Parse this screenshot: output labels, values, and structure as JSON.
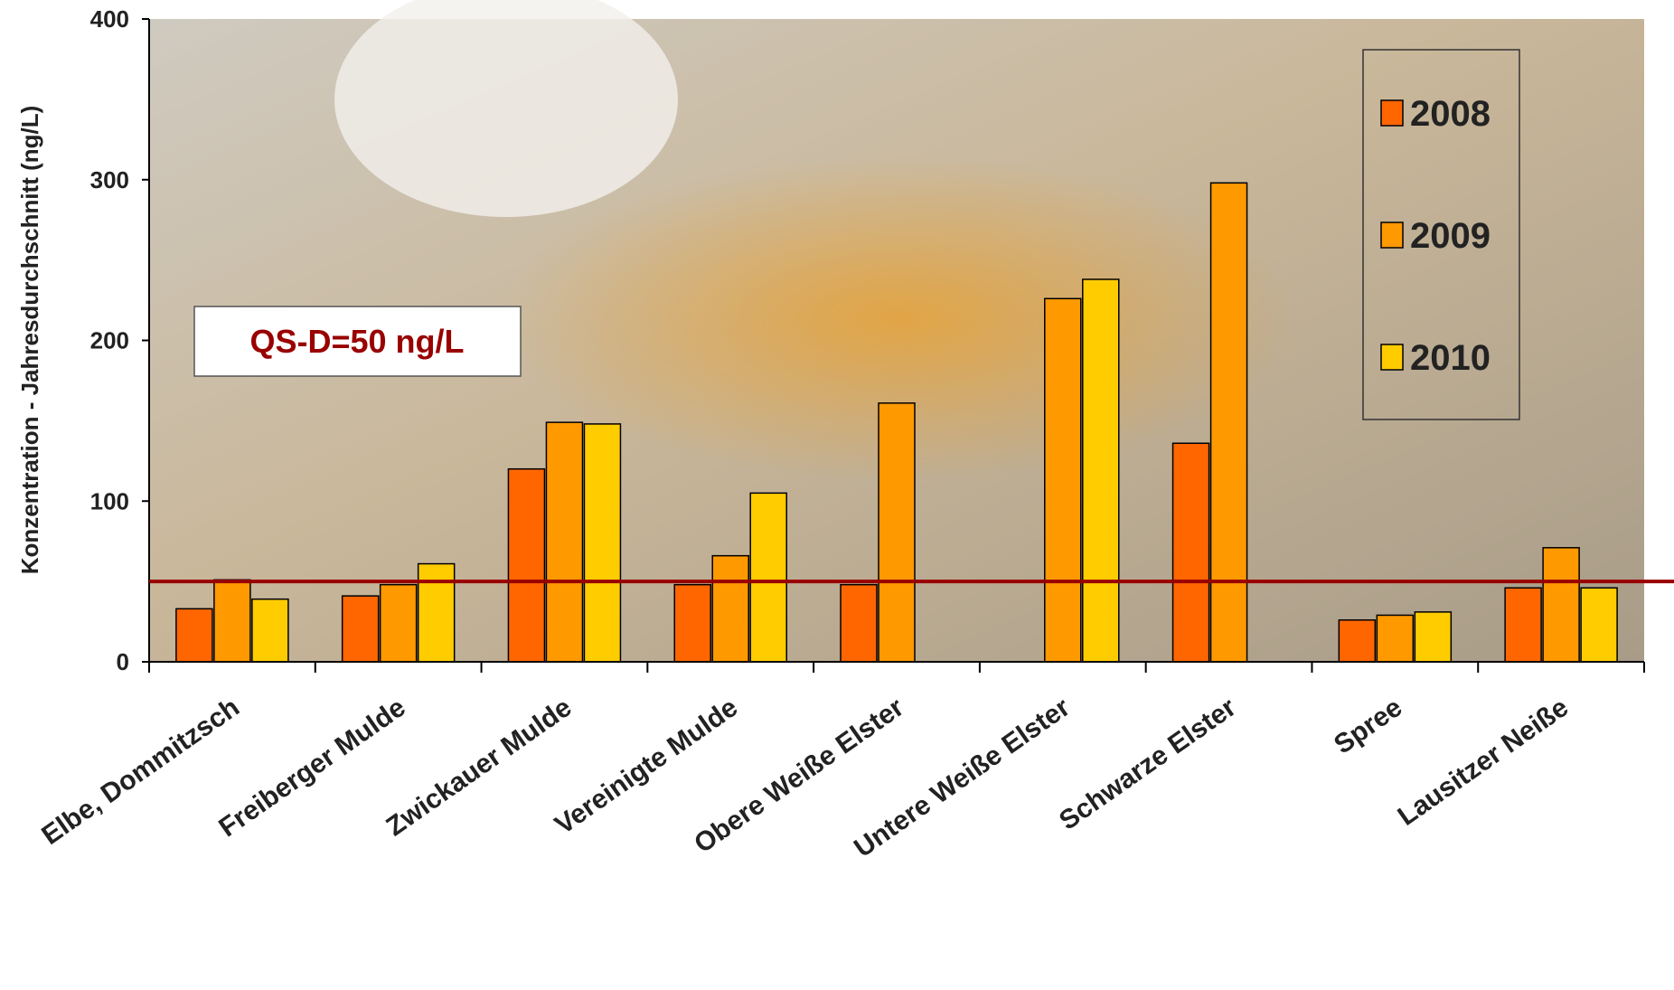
{
  "chart_data": {
    "type": "bar",
    "y_label": "Konzentration - Jahresdurchschnitt (ng/L)",
    "categories": [
      "Elbe, Dommitzsch",
      "Freiberger Mulde",
      "Zwickauer Mulde",
      "Vereinigte Mulde",
      "Obere Weiße Elster",
      "Untere Weiße Elster",
      "Schwarze Elster",
      "Spree",
      "Lausitzer Neiße"
    ],
    "series": [
      {
        "name": "2008",
        "color": "#ff6600",
        "values": [
          33,
          41,
          120,
          48,
          48,
          null,
          136,
          26,
          46
        ]
      },
      {
        "name": "2009",
        "color": "#ff9900",
        "values": [
          51,
          48,
          149,
          66,
          161,
          226,
          298,
          29,
          71
        ]
      },
      {
        "name": "2010",
        "color": "#ffcc00",
        "values": [
          39,
          61,
          148,
          105,
          null,
          238,
          null,
          31,
          46
        ]
      }
    ],
    "ylim": [
      0,
      400
    ],
    "yticks": [
      0,
      100,
      200,
      300,
      400
    ],
    "threshold": {
      "value": 50,
      "label": "QS-D=50 ng/L",
      "color": "#990000"
    },
    "legend": "top-right"
  }
}
